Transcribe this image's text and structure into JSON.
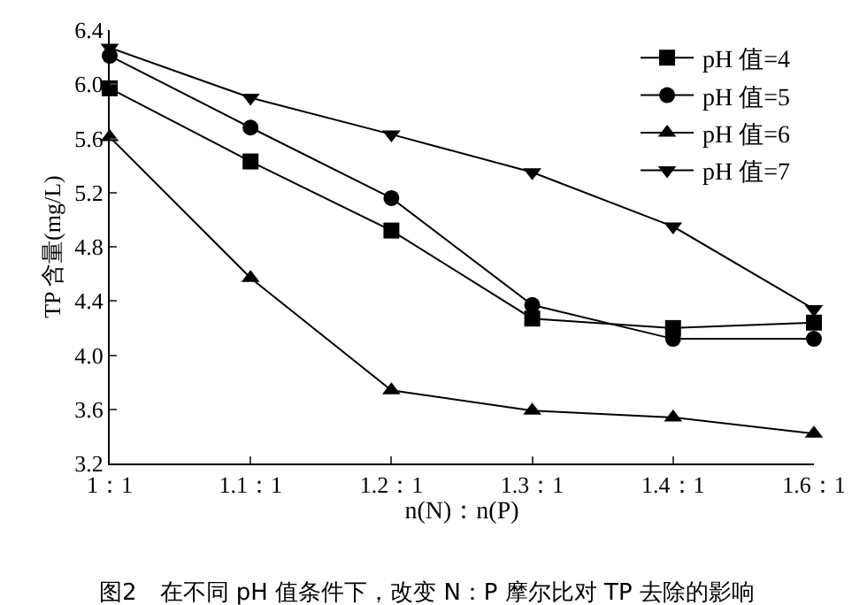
{
  "chart_data": {
    "type": "line",
    "title": "图2　在不同 pH 值条件下，改变 N：P 摩尔比对 TP 去除的影响",
    "xlabel": "n(N)：n(P)",
    "ylabel": "TP 含量(mg/L)",
    "categories": [
      "1：1",
      "1.1：1",
      "1.2：1",
      "1.3：1",
      "1.4：1",
      "1.6：1"
    ],
    "ylim": [
      3.2,
      6.4
    ],
    "yticks": [
      3.2,
      3.6,
      {
        "value": 4,
        "label": "4.0"
      },
      4.4,
      4.8,
      5.2,
      5.6,
      {
        "value": 6,
        "label": "6.0"
      },
      6.4
    ],
    "legend": "top right",
    "line_style": "solid",
    "series": [
      {
        "name": "pH 值=4",
        "color": "#000000",
        "marker": "square",
        "values": [
          5.97,
          5.43,
          4.92,
          4.27,
          4.2,
          4.24
        ]
      },
      {
        "name": "pH 值=5",
        "color": "#000000",
        "marker": "circle",
        "values": [
          6.21,
          5.68,
          5.16,
          4.37,
          4.12,
          4.12
        ]
      },
      {
        "name": "pH 值=6",
        "color": "#000000",
        "marker": "triangle",
        "values": [
          5.61,
          4.57,
          3.74,
          3.59,
          3.54,
          3.42
        ]
      },
      {
        "name": "pH 值=7",
        "color": "#000000",
        "marker": "triangle-down",
        "values": [
          6.27,
          5.9,
          5.63,
          5.35,
          4.95,
          4.34
        ]
      }
    ]
  }
}
